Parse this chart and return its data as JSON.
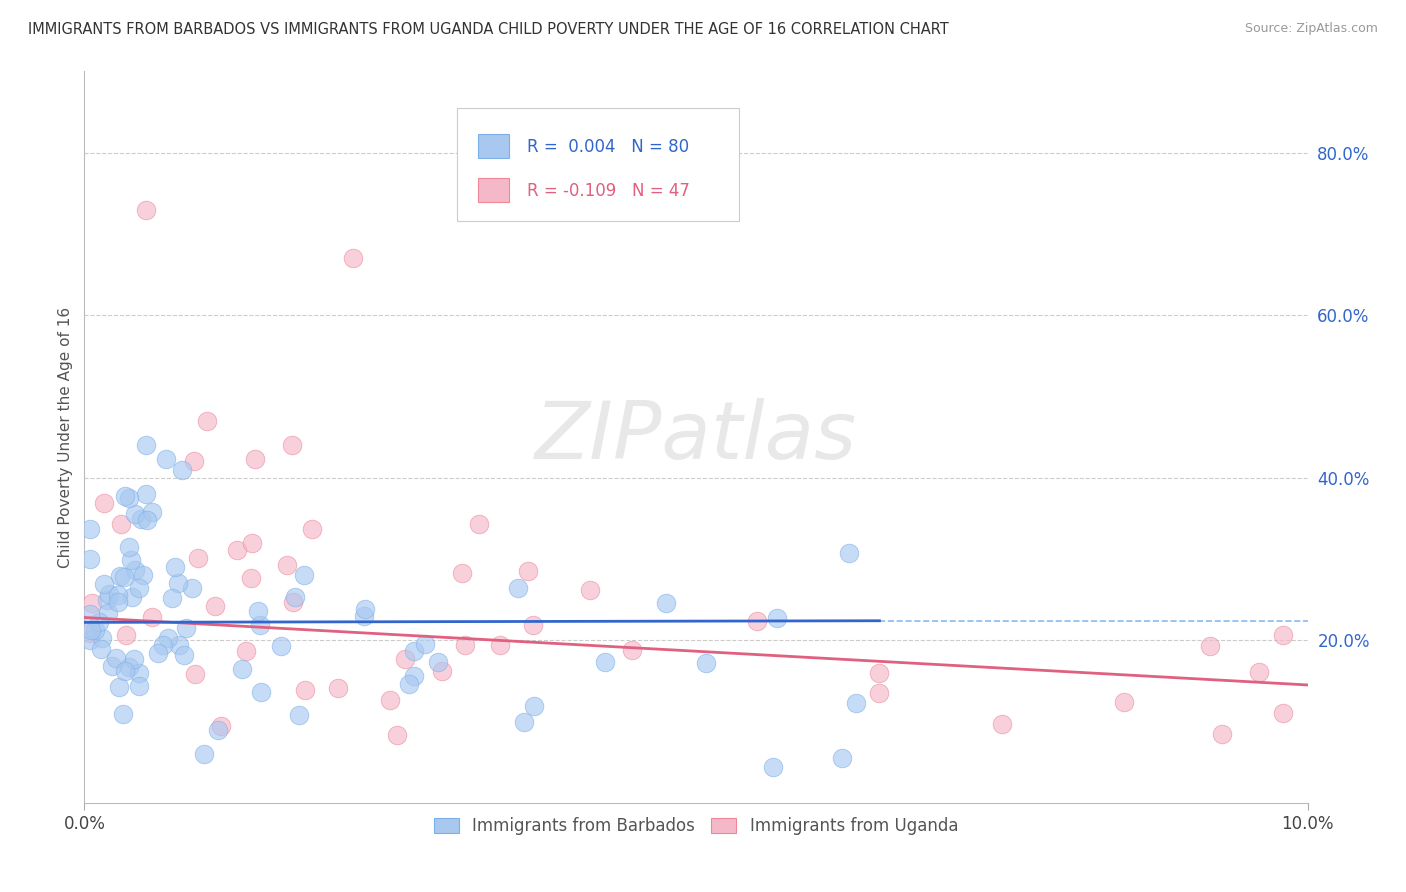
{
  "title": "IMMIGRANTS FROM BARBADOS VS IMMIGRANTS FROM UGANDA CHILD POVERTY UNDER THE AGE OF 16 CORRELATION CHART",
  "source": "Source: ZipAtlas.com",
  "ylabel": "Child Poverty Under the Age of 16",
  "xlim": [
    0.0,
    0.1
  ],
  "ylim": [
    0.0,
    0.9
  ],
  "barbados_color": "#A8C8F0",
  "barbados_edge_color": "#7EB0E8",
  "uganda_color": "#F5B8C8",
  "uganda_edge_color": "#EE8898",
  "barbados_line_color": "#3366CC",
  "uganda_line_color": "#E06080",
  "legend_r1_color": "#3366CC",
  "legend_n1_color": "#3366CC",
  "legend_r2_color": "#E06080",
  "legend_n2_color": "#3366CC",
  "label1": "Immigrants from Barbados",
  "label2": "Immigrants from Uganda",
  "background_color": "#FFFFFF",
  "watermark_color": "#DDDDDD",
  "watermark": "ZIPatlas",
  "right_tick_color": "#3366CC"
}
